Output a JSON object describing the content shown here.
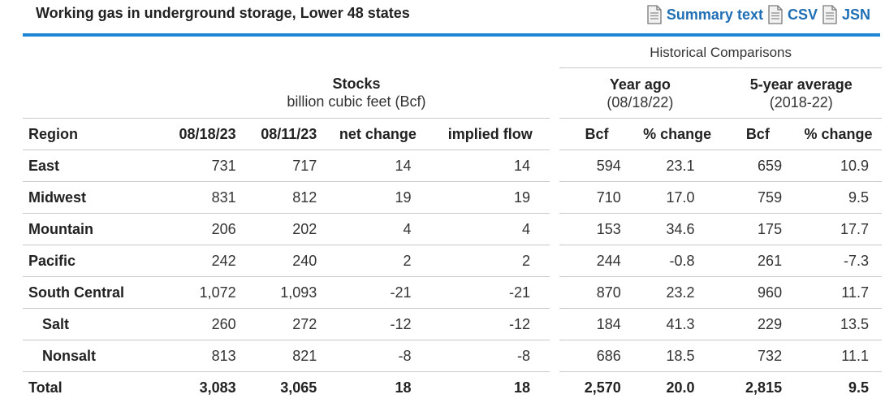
{
  "header": {
    "title": "Working gas in underground storage, Lower 48 states",
    "links": [
      {
        "label": "Summary text",
        "icon": "document-icon"
      },
      {
        "label": "CSV",
        "icon": "document-icon"
      },
      {
        "label": "JSN",
        "icon": "document-icon"
      }
    ],
    "accent_color": "#1f86d6",
    "link_color": "#1f6fb5"
  },
  "table": {
    "historical_label": "Historical Comparisons",
    "stocks_group": {
      "title": "Stocks",
      "subtitle": "billion cubic feet (Bcf)"
    },
    "year_ago_group": {
      "title": "Year ago",
      "subtitle": "(08/18/22)"
    },
    "five_year_group": {
      "title": "5-year average",
      "subtitle": "(2018-22)"
    },
    "columns": [
      "Region",
      "08/18/23",
      "08/11/23",
      "net change",
      "implied flow",
      "Bcf",
      "% change",
      "Bcf",
      "% change"
    ],
    "rows": [
      {
        "region": "East",
        "v1": "731",
        "v2": "717",
        "net": "14",
        "flow": "14",
        "ya_bcf": "594",
        "ya_pct": "23.1",
        "fy_bcf": "659",
        "fy_pct": "10.9"
      },
      {
        "region": "Midwest",
        "v1": "831",
        "v2": "812",
        "net": "19",
        "flow": "19",
        "ya_bcf": "710",
        "ya_pct": "17.0",
        "fy_bcf": "759",
        "fy_pct": "9.5"
      },
      {
        "region": "Mountain",
        "v1": "206",
        "v2": "202",
        "net": "4",
        "flow": "4",
        "ya_bcf": "153",
        "ya_pct": "34.6",
        "fy_bcf": "175",
        "fy_pct": "17.7"
      },
      {
        "region": "Pacific",
        "v1": "242",
        "v2": "240",
        "net": "2",
        "flow": "2",
        "ya_bcf": "244",
        "ya_pct": "-0.8",
        "fy_bcf": "261",
        "fy_pct": "-7.3"
      },
      {
        "region": "South Central",
        "v1": "1,072",
        "v2": "1,093",
        "net": "-21",
        "flow": "-21",
        "ya_bcf": "870",
        "ya_pct": "23.2",
        "fy_bcf": "960",
        "fy_pct": "11.7"
      },
      {
        "region": "Salt",
        "v1": "260",
        "v2": "272",
        "net": "-12",
        "flow": "-12",
        "ya_bcf": "184",
        "ya_pct": "41.3",
        "fy_bcf": "229",
        "fy_pct": "13.5"
      },
      {
        "region": "Nonsalt",
        "v1": "813",
        "v2": "821",
        "net": "-8",
        "flow": "-8",
        "ya_bcf": "686",
        "ya_pct": "18.5",
        "fy_bcf": "732",
        "fy_pct": "11.1"
      },
      {
        "region": "Total",
        "v1": "3,083",
        "v2": "3,065",
        "net": "18",
        "flow": "18",
        "ya_bcf": "2,570",
        "ya_pct": "20.0",
        "fy_bcf": "2,815",
        "fy_pct": "9.5"
      }
    ]
  }
}
